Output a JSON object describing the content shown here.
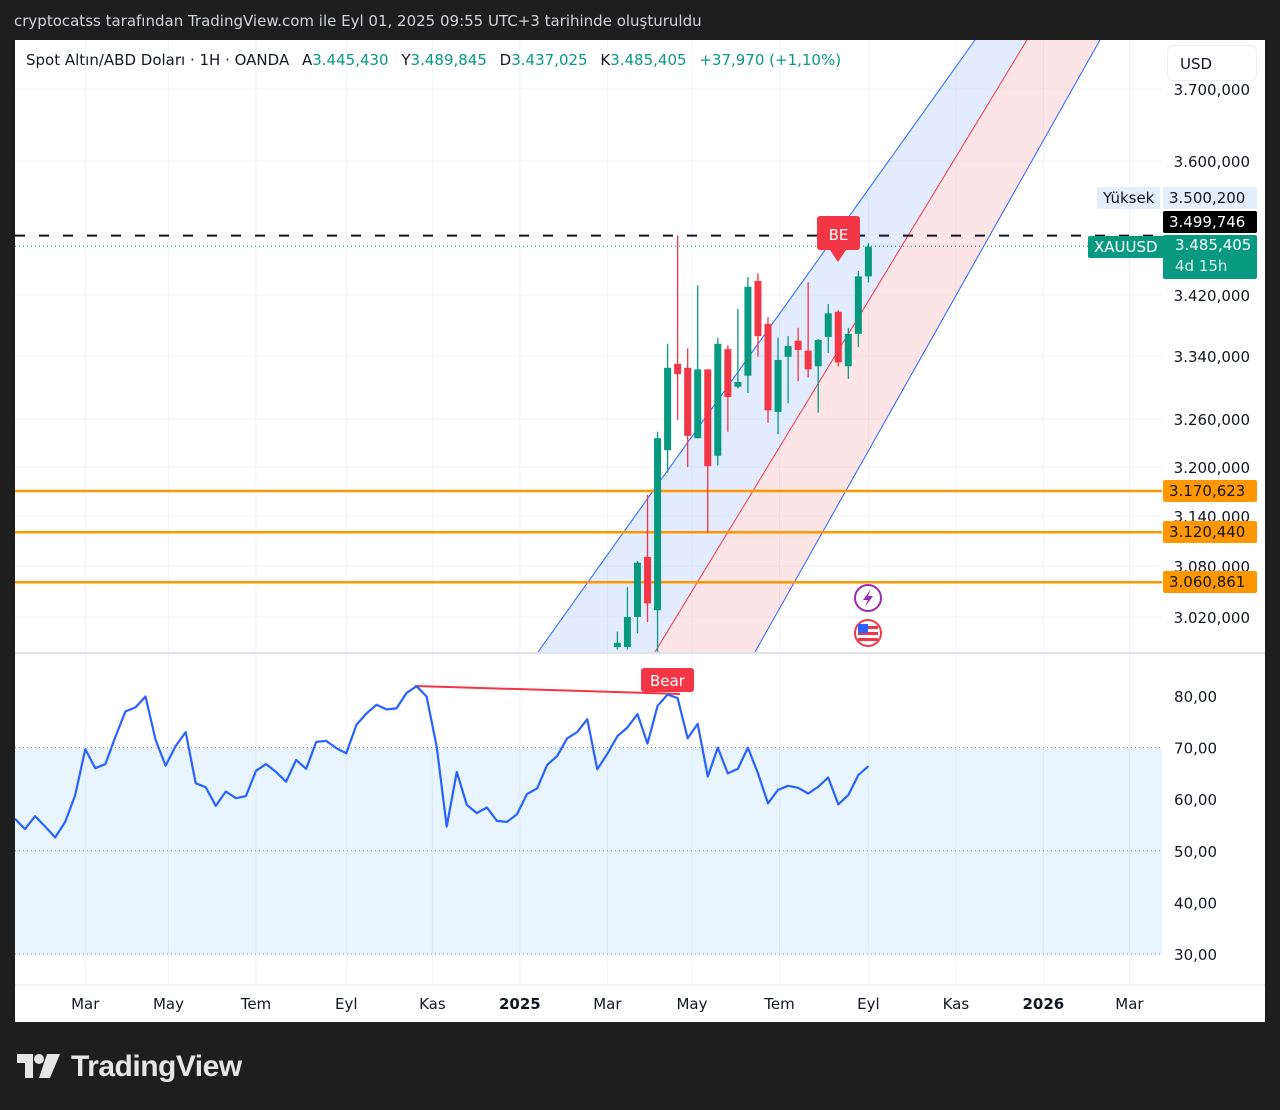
{
  "caption": "cryptocatss tarafından TradingView.com ile Eyl 01, 2025 09:55 UTC+3 tarihinde oluşturuldu",
  "legend": {
    "symbol": "Spot Altın/ABD Doları · 1H · OANDA",
    "open_label": "A",
    "open": "3.445,430",
    "high_label": "Y",
    "high": "3.489,845",
    "low_label": "D",
    "low": "3.437,025",
    "close_label": "K",
    "close": "3.485,405",
    "change": "+37,970 (+1,10%)"
  },
  "currency_button": "USD",
  "price_axis": {
    "ticks": [
      {
        "value": 3700,
        "label": "3.700,000"
      },
      {
        "value": 3600,
        "label": "3.600,000"
      },
      {
        "value": 3420,
        "label": "3.420,000"
      },
      {
        "value": 3340,
        "label": "3.340,000"
      },
      {
        "value": 3260,
        "label": "3.260,000"
      },
      {
        "value": 3200,
        "label": "3.200,000"
      },
      {
        "value": 3140,
        "label": "3.140,000"
      },
      {
        "value": 3080,
        "label": "3.080,000"
      },
      {
        "value": 3020,
        "label": "3.020,000"
      }
    ],
    "high_tag": {
      "label": "Yüksek",
      "value": "3.500,200"
    },
    "high_line_tag": {
      "value": "3.499,746",
      "price": 3499.746
    },
    "last_tag": {
      "symbol": "XAUUSD",
      "value": "3.485,405",
      "countdown": "4d 15h",
      "price": 3485.405
    }
  },
  "levels": [
    {
      "price": 3170.623,
      "label": "3.170,623"
    },
    {
      "price": 3120.44,
      "label": "3.120,440"
    },
    {
      "price": 3060.861,
      "label": "3.060,861"
    }
  ],
  "markers": {
    "be": "BE",
    "bear": "Bear"
  },
  "event_icons": [
    "lightning-icon",
    "us-flag-icon"
  ],
  "time_axis": [
    {
      "label": "Mar",
      "date": "2024-03-04",
      "bold": false
    },
    {
      "label": "May",
      "date": "2024-05-01",
      "bold": false
    },
    {
      "label": "Tem",
      "date": "2024-07-01",
      "bold": false
    },
    {
      "label": "Eyl",
      "date": "2024-09-02",
      "bold": false
    },
    {
      "label": "Kas",
      "date": "2024-11-01",
      "bold": false
    },
    {
      "label": "2025",
      "date": "2025-01-01",
      "bold": true
    },
    {
      "label": "Mar",
      "date": "2025-03-03",
      "bold": false
    },
    {
      "label": "May",
      "date": "2025-05-01",
      "bold": false
    },
    {
      "label": "Tem",
      "date": "2025-07-01",
      "bold": false
    },
    {
      "label": "Eyl",
      "date": "2025-09-01",
      "bold": false
    },
    {
      "label": "Kas",
      "date": "2025-11-01",
      "bold": false
    },
    {
      "label": "2026",
      "date": "2026-01-01",
      "bold": true
    },
    {
      "label": "Mar",
      "date": "2026-03-02",
      "bold": false
    }
  ],
  "colors": {
    "up": "#089981",
    "down": "#f23645",
    "level": "#ff9800",
    "rsi": "#2962ff",
    "channel_upper": "#2962ff",
    "channel_mid": "#f23645"
  },
  "chart_data": {
    "type": "candlestick",
    "candles_columns": [
      "date",
      "open",
      "high",
      "low",
      "close"
    ],
    "candles": [
      [
        "2025-03-10",
        2985,
        3003,
        2982,
        2990
      ],
      [
        "2025-03-17",
        2985,
        3055,
        2982,
        3020
      ],
      [
        "2025-03-24",
        3020,
        3086,
        3001,
        3084
      ],
      [
        "2025-03-31",
        3091,
        3166,
        3014,
        3036
      ],
      [
        "2025-04-07",
        3028,
        3244,
        2978,
        3236
      ],
      [
        "2025-04-14",
        3221,
        3356,
        3193,
        3325
      ],
      [
        "2025-04-21",
        3330,
        3500,
        3259,
        3317
      ],
      [
        "2025-04-28",
        3325,
        3350,
        3200,
        3239
      ],
      [
        "2025-05-05",
        3236,
        3433,
        3236,
        3323
      ],
      [
        "2025-05-12",
        3323,
        3323,
        3120,
        3201
      ],
      [
        "2025-05-19",
        3214,
        3364,
        3202,
        3356
      ],
      [
        "2025-05-26",
        3349,
        3354,
        3244,
        3288
      ],
      [
        "2025-06-02",
        3301,
        3402,
        3299,
        3307
      ],
      [
        "2025-06-09",
        3315,
        3444,
        3293,
        3431
      ],
      [
        "2025-06-16",
        3439,
        3449,
        3339,
        3366
      ],
      [
        "2025-06-23",
        3382,
        3391,
        3255,
        3271
      ],
      [
        "2025-06-30",
        3269,
        3364,
        3241,
        3335
      ],
      [
        "2025-07-07",
        3339,
        3366,
        3280,
        3353
      ],
      [
        "2025-07-14",
        3360,
        3377,
        3308,
        3348
      ],
      [
        "2025-07-21",
        3347,
        3437,
        3313,
        3323
      ],
      [
        "2025-07-28",
        3327,
        3362,
        3268,
        3361
      ],
      [
        "2025-08-04",
        3365,
        3408,
        3344,
        3396
      ],
      [
        "2025-08-11",
        3398,
        3400,
        3327,
        3332
      ],
      [
        "2025-08-18",
        3327,
        3377,
        3311,
        3369
      ],
      [
        "2025-08-25",
        3369,
        3452,
        3352,
        3445
      ],
      [
        "2025-09-01",
        3445,
        3490,
        3437,
        3485
      ]
    ],
    "rsi": {
      "axis_ticks": [
        "80,00",
        "70,00",
        "60,00",
        "50,00",
        "40,00",
        "30,00"
      ],
      "tick_values": [
        80,
        70,
        60,
        50,
        40,
        30
      ],
      "bands": [
        70,
        50,
        30
      ],
      "dates": [
        "2024-01-15",
        "2024-01-22",
        "2024-01-29",
        "2024-02-05",
        "2024-02-12",
        "2024-02-19",
        "2024-02-26",
        "2024-03-04",
        "2024-03-11",
        "2024-03-18",
        "2024-03-25",
        "2024-04-01",
        "2024-04-08",
        "2024-04-15",
        "2024-04-22",
        "2024-04-29",
        "2024-05-06",
        "2024-05-13",
        "2024-05-20",
        "2024-05-27",
        "2024-06-03",
        "2024-06-10",
        "2024-06-17",
        "2024-06-24",
        "2024-07-01",
        "2024-07-08",
        "2024-07-15",
        "2024-07-22",
        "2024-07-29",
        "2024-08-05",
        "2024-08-12",
        "2024-08-19",
        "2024-08-26",
        "2024-09-02",
        "2024-09-09",
        "2024-09-16",
        "2024-09-23",
        "2024-09-30",
        "2024-10-07",
        "2024-10-14",
        "2024-10-21",
        "2024-10-28",
        "2024-11-04",
        "2024-11-11",
        "2024-11-18",
        "2024-11-25",
        "2024-12-02",
        "2024-12-09",
        "2024-12-16",
        "2024-12-23",
        "2024-12-30",
        "2025-01-06",
        "2025-01-13",
        "2025-01-20",
        "2025-01-27",
        "2025-02-03",
        "2025-02-10",
        "2025-02-17",
        "2025-02-24",
        "2025-03-03",
        "2025-03-10",
        "2025-03-17",
        "2025-03-24",
        "2025-03-31",
        "2025-04-07",
        "2025-04-14",
        "2025-04-21",
        "2025-04-28",
        "2025-05-05",
        "2025-05-12",
        "2025-05-19",
        "2025-05-26",
        "2025-06-02",
        "2025-06-09",
        "2025-06-16",
        "2025-06-23",
        "2025-06-30",
        "2025-07-07",
        "2025-07-14",
        "2025-07-21",
        "2025-07-28",
        "2025-08-04",
        "2025-08-11",
        "2025-08-18",
        "2025-08-25",
        "2025-09-01"
      ],
      "values": [
        56.2,
        54.2,
        56.7,
        54.7,
        52.6,
        55.6,
        60.8,
        69.7,
        66.0,
        66.8,
        72.1,
        77.0,
        77.8,
        79.9,
        71.5,
        66.5,
        70.3,
        73.0,
        63.1,
        62.3,
        58.7,
        61.5,
        60.2,
        60.6,
        65.5,
        66.8,
        65.3,
        63.4,
        67.6,
        65.9,
        71.1,
        71.3,
        69.9,
        68.9,
        74.4,
        76.6,
        78.3,
        77.4,
        77.6,
        80.6,
        81.9,
        79.9,
        70.2,
        54.7,
        65.3,
        58.9,
        57.3,
        58.4,
        55.8,
        55.6,
        57.1,
        61.0,
        62.1,
        66.6,
        68.4,
        71.8,
        73.0,
        75.5,
        65.8,
        68.8,
        72.2,
        73.9,
        76.5,
        70.8,
        78.1,
        80.3,
        79.6,
        71.8,
        74.6,
        64.4,
        70.0,
        65.0,
        65.9,
        70.0,
        65.0,
        59.2,
        61.8,
        62.6,
        62.2,
        61.1,
        62.4,
        64.2,
        59.0,
        60.8,
        64.7,
        66.4
      ]
    }
  }
}
